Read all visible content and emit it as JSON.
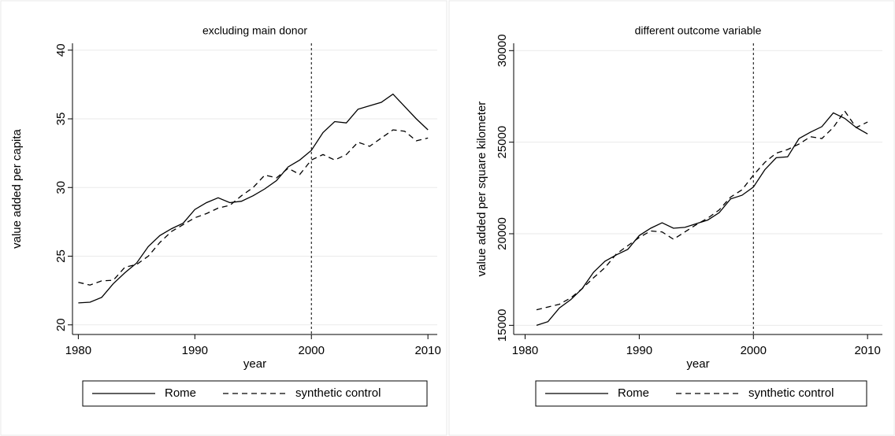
{
  "chart_data": [
    {
      "type": "line",
      "title": "excluding main donor",
      "x_label": "year",
      "y_label": "value added per capita",
      "x": [
        1980,
        1981,
        1982,
        1983,
        1984,
        1985,
        1986,
        1987,
        1988,
        1989,
        1990,
        1991,
        1992,
        1993,
        1994,
        1995,
        1996,
        1997,
        1998,
        1999,
        2000,
        2001,
        2002,
        2003,
        2004,
        2005,
        2006,
        2007,
        2008,
        2009,
        2010
      ],
      "series": [
        {
          "name": "Rome",
          "color": "#000000",
          "dash": "solid",
          "values": [
            21.6,
            21.65,
            22.0,
            23.0,
            23.8,
            24.5,
            25.7,
            26.5,
            27.0,
            27.4,
            28.4,
            28.9,
            29.25,
            28.9,
            29.0,
            29.4,
            29.9,
            30.5,
            31.5,
            32.0,
            32.7,
            34.0,
            34.8,
            34.7,
            35.7,
            35.95,
            36.2,
            36.8,
            35.9,
            35.0,
            34.2
          ]
        },
        {
          "name": "synthetic control",
          "color": "#000000",
          "dash": "dashed",
          "values": [
            23.1,
            22.9,
            23.2,
            23.25,
            24.2,
            24.4,
            25.0,
            26.0,
            26.8,
            27.3,
            27.8,
            28.1,
            28.5,
            28.7,
            29.4,
            30.0,
            30.9,
            30.7,
            31.4,
            30.95,
            32.0,
            32.4,
            32.0,
            32.4,
            33.3,
            33.0,
            33.6,
            34.2,
            34.1,
            33.4,
            33.6
          ]
        }
      ],
      "xlim": [
        1979.5,
        2010.8
      ],
      "xticks": [
        1980,
        1990,
        2000,
        2010
      ],
      "ylim": [
        19.3,
        40.5
      ],
      "yticks": [
        20,
        25,
        30,
        35,
        40
      ],
      "xline": 2000,
      "grid": true
    },
    {
      "type": "line",
      "title": "different outcome variable",
      "x_label": "year",
      "y_label": "value added per square kilometer",
      "x": [
        1981,
        1982,
        1983,
        1984,
        1985,
        1986,
        1987,
        1988,
        1989,
        1990,
        1991,
        1992,
        1993,
        1994,
        1995,
        1996,
        1997,
        1998,
        1999,
        2000,
        2001,
        2002,
        2003,
        2004,
        2005,
        2006,
        2007,
        2008,
        2009,
        2010
      ],
      "series": [
        {
          "name": "Rome",
          "color": "#000000",
          "dash": "solid",
          "values": [
            15000,
            15200,
            15950,
            16400,
            17000,
            17900,
            18500,
            18850,
            19150,
            19900,
            20300,
            20600,
            20300,
            20350,
            20550,
            20750,
            21150,
            21900,
            22100,
            22550,
            23500,
            24150,
            24200,
            25200,
            25550,
            25850,
            26600,
            26300,
            25800,
            25450
          ]
        },
        {
          "name": "synthetic control",
          "color": "#000000",
          "dash": "dashed",
          "values": [
            15850,
            16000,
            16150,
            16500,
            17000,
            17600,
            18150,
            18900,
            19350,
            19800,
            20150,
            20100,
            19700,
            20100,
            20500,
            20850,
            21300,
            22000,
            22400,
            23200,
            23900,
            24400,
            24600,
            24900,
            25300,
            25200,
            25800,
            26700,
            25800,
            26100
          ]
        }
      ],
      "xlim": [
        1979,
        2011.3
      ],
      "xticks": [
        1980,
        1990,
        2000,
        2010
      ],
      "ylim": [
        14500,
        30400
      ],
      "yticks": [
        15000,
        20000,
        25000,
        30000
      ],
      "xline": 2000,
      "grid": true
    }
  ]
}
